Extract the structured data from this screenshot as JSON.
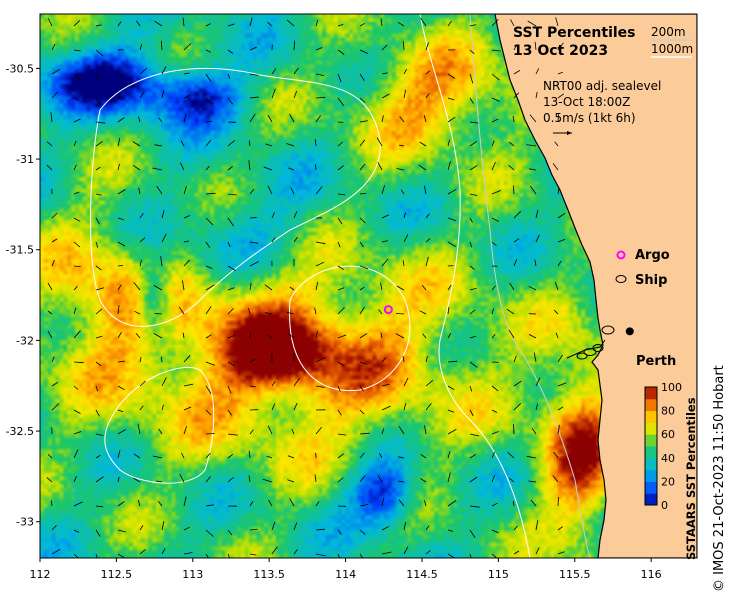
{
  "title_line1": "SST Percentiles",
  "title_line2": "13 Oct 2023",
  "contour_200": "200m",
  "contour_1000": "1000m",
  "info_line1": "NRT00 adj. sealevel",
  "info_line2": "13-Oct 18:00Z",
  "info_line3": "0.5m/s (1kt 6h)",
  "legend_argo": "Argo",
  "legend_ship": "Ship",
  "place_perth": "Perth",
  "colorbar_title": "SSTAARS SST Percentiles",
  "colorbar_ticks": [
    "0",
    "20",
    "40",
    "60",
    "80",
    "100"
  ],
  "copyright": "© IMOS 21-Oct-2023 11:50 Hobart",
  "x_ticks": [
    "112",
    "112.5",
    "113",
    "113.5",
    "114",
    "114.5",
    "115",
    "115.5",
    "116"
  ],
  "y_ticks": [
    "-30.5",
    "-31",
    "-31.5",
    "-32",
    "-32.5",
    "-33"
  ],
  "map_data": {
    "lon_range": [
      112,
      116.3
    ],
    "lat_range": [
      -33.2,
      -30.2
    ],
    "argo_float": {
      "lon": 114.28,
      "lat": -31.83
    },
    "perth": {
      "lon": 115.86,
      "lat": -31.95
    }
  },
  "colors": {
    "land": "#fccb9a",
    "argo": "#ff00ff",
    "p0": "#00007f",
    "p10": "#0040ff",
    "p30": "#00b8e0",
    "p50": "#20c860",
    "p60": "#b8e000",
    "p70": "#ffe800",
    "p80": "#ffa000",
    "p90": "#e05000",
    "p100": "#8b0000"
  }
}
